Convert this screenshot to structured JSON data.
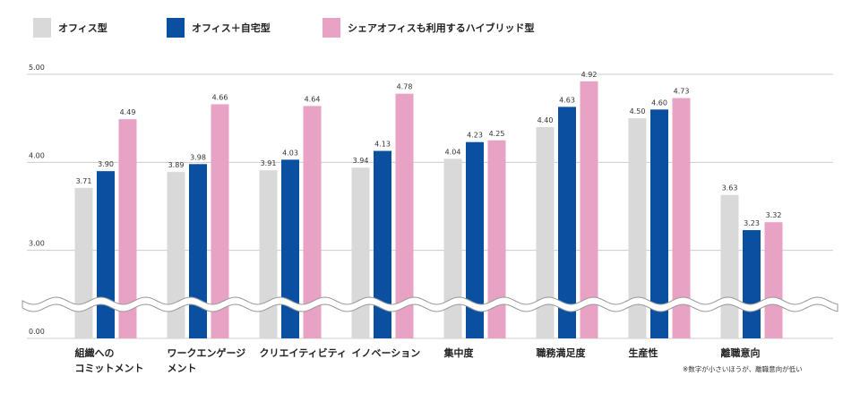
{
  "chart_data": {
    "type": "bar",
    "categories": [
      "組織への\nコミットメント",
      "ワークエンゲージ\nメント",
      "クリエイティビティ",
      "イノベーション",
      "集中度",
      "職務満足度",
      "生産性",
      "離職意向"
    ],
    "series": [
      {
        "name": "オフィス型",
        "color": "#d9d9d9",
        "values": [
          3.71,
          3.89,
          3.91,
          3.94,
          4.04,
          4.4,
          4.5,
          3.63
        ],
        "value_labels": [
          "3.71",
          "3.89",
          "3.91",
          "3.94",
          "4.04",
          "4.40",
          "4.50",
          "3.63"
        ]
      },
      {
        "name": "オフィス＋自宅型",
        "color": "#0a4fa0",
        "values": [
          3.9,
          3.98,
          4.03,
          4.13,
          4.23,
          4.63,
          4.6,
          3.23
        ],
        "value_labels": [
          "3.90",
          "3.98",
          "4.03",
          "4.13",
          "4.23",
          "4.63",
          "4.60",
          "3.23"
        ]
      },
      {
        "name": "シェアオフィスも利用するハイブリッド型",
        "color": "#e8a3c4",
        "values": [
          4.49,
          4.66,
          4.64,
          4.78,
          4.25,
          4.92,
          4.73,
          3.32
        ],
        "value_labels": [
          "4.49",
          "4.66",
          "4.64",
          "4.78",
          "4.25",
          "4.92",
          "4.73",
          "3.32"
        ]
      }
    ],
    "ylim": [
      0,
      5
    ],
    "yticks": [
      {
        "value": 0,
        "label": "0.00"
      },
      {
        "value": 3,
        "label": "3.00"
      },
      {
        "value": 4,
        "label": "4.00"
      },
      {
        "value": 5,
        "label": "5.00"
      }
    ],
    "grid": true,
    "axis_break": true,
    "annotation": "※数字が小さいほうが、離職意向が低い"
  }
}
